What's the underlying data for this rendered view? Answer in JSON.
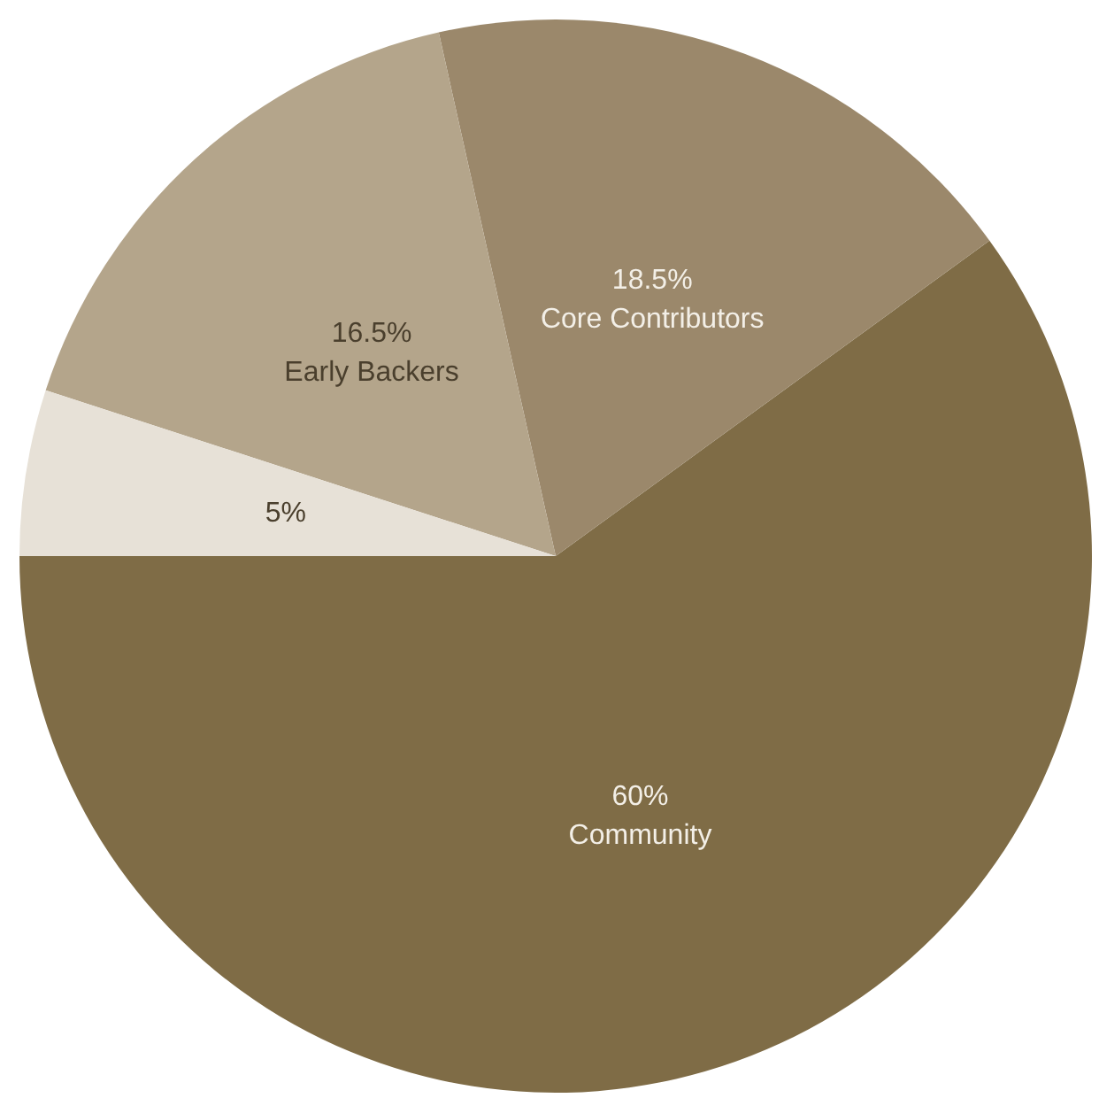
{
  "chart_data": {
    "type": "pie",
    "categories": [
      "Community",
      "Core Contributors",
      "Early Backers",
      null
    ],
    "values": [
      60,
      18.5,
      16.5,
      5
    ],
    "value_labels": [
      "60%",
      "18.5%",
      "16.5%",
      "5%"
    ],
    "colors": [
      "#7f6c46",
      "#9b886b",
      "#b4a58b",
      "#e7e1d7"
    ],
    "legend": false
  }
}
